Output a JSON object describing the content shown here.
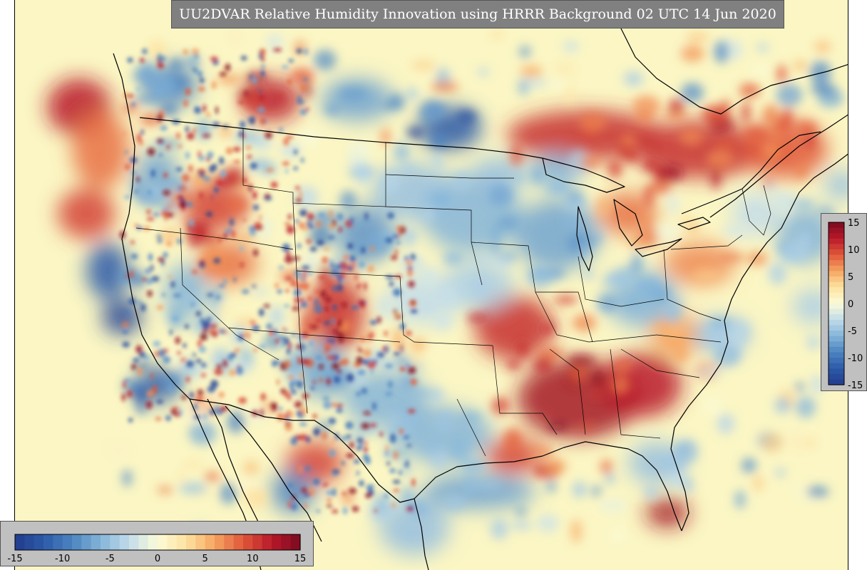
{
  "title": "UU2DVAR Relative Humidity Innovation using HRRR Background 02 UTC 14 Jun 2020",
  "colorbar": {
    "min": -15,
    "max": 15,
    "ticks": [
      "-15",
      "-10",
      "-5",
      "0",
      "5",
      "10",
      "15"
    ],
    "colors": [
      "#223b8c",
      "#2c5aa8",
      "#4c84c0",
      "#84b4d8",
      "#c2dcea",
      "#fbfbd8",
      "#fde2a0",
      "#f6a562",
      "#e0573a",
      "#b8182a",
      "#7a0b1f"
    ]
  },
  "map": {
    "background_color": "#fbf6c4",
    "warm_color": "#c81e23",
    "cool_color": "#2f62ae"
  }
}
